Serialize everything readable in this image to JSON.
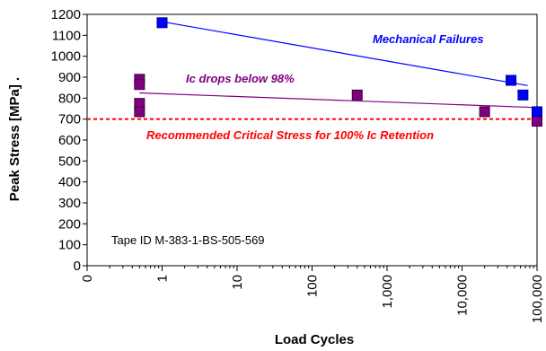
{
  "chart_data": {
    "type": "scatter",
    "xlabel": "Load Cycles",
    "ylabel": "Peak Stress [MPa] .",
    "x_scale": "log",
    "x_tick_labels": [
      "0",
      "1",
      "10",
      "100",
      "1,000",
      "10,000",
      "100,000"
    ],
    "x_tick_values": [
      0.1,
      1,
      10,
      100,
      1000,
      10000,
      100000
    ],
    "xlim": [
      0.1,
      100000
    ],
    "ylim": [
      0,
      1200
    ],
    "y_ticks": [
      0,
      100,
      200,
      300,
      400,
      500,
      600,
      700,
      800,
      900,
      1000,
      1100,
      1200
    ],
    "grid": false,
    "series": [
      {
        "name": "Mechanical Failures",
        "color": "#0000ff",
        "marker_edge": "#000080",
        "points": [
          {
            "x": 1,
            "y": 1160
          },
          {
            "x": 45000,
            "y": 885
          },
          {
            "x": 65000,
            "y": 815
          },
          {
            "x": 100000,
            "y": 735
          }
        ],
        "trendline": {
          "x": [
            1,
            75000
          ],
          "y": [
            1165,
            860
          ]
        }
      },
      {
        "name": "Ic drops below 98%",
        "color": "#800080",
        "marker_edge": "#3a0040",
        "points": [
          {
            "x": 0.5,
            "y": 890
          },
          {
            "x": 0.5,
            "y": 865
          },
          {
            "x": 0.5,
            "y": 775
          },
          {
            "x": 0.5,
            "y": 735
          },
          {
            "x": 400,
            "y": 815
          },
          {
            "x": 20000,
            "y": 735
          },
          {
            "x": 100000,
            "y": 690
          }
        ],
        "trendline": {
          "x": [
            0.5,
            100000
          ],
          "y": [
            825,
            755
          ]
        }
      }
    ],
    "reference_line": {
      "label": "Recommended Critical Stress for 100% Ic Retention",
      "y": 700,
      "color": "#ff0000",
      "style": "dashed"
    },
    "annotations": {
      "mechanical": "Mechanical Failures",
      "ic_drop": "Ic drops below 98%",
      "tape_id": "Tape ID M-383-1-BS-505-569"
    }
  }
}
